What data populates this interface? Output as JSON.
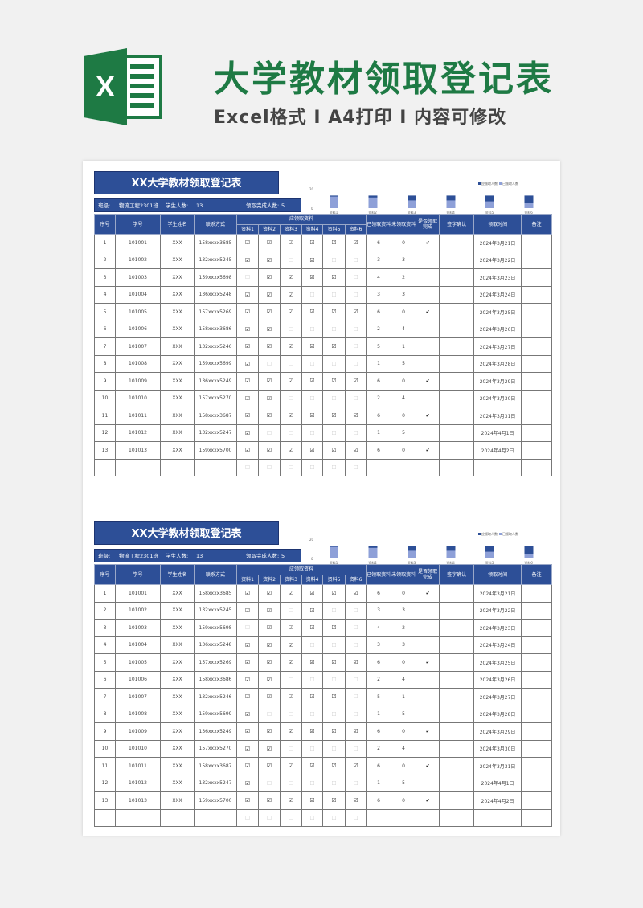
{
  "hero": {
    "title": "大学教材领取登记表",
    "subtitle": "Excel格式 I A4打印 I 内容可修改",
    "logo_letter": "X",
    "logo_color": "#1e7a44"
  },
  "sheet": {
    "title": "XX大学教材领取登记表",
    "info": {
      "class_label": "班级:",
      "class_value": "物流工程2301班",
      "students_label": "学生人数:",
      "students_value": "13",
      "done_label": "领取完成人数:",
      "done_value": "5"
    },
    "chart_data": {
      "type": "bar",
      "categories": [
        "资料1",
        "资料2",
        "资料3",
        "资料4",
        "资料5",
        "资料6"
      ],
      "series": [
        {
          "name": "应领取人数",
          "values": [
            13,
            13,
            13,
            13,
            13,
            13
          ],
          "color": "#2d4f97"
        },
        {
          "name": "已领取人数",
          "values": [
            12,
            11,
            8,
            8,
            7,
            5
          ],
          "color": "#8ea0d8"
        }
      ],
      "yticks": [
        "20",
        "0"
      ],
      "ylim": [
        0,
        20
      ],
      "legend": "top-right"
    },
    "headers": {
      "no": "序号",
      "id": "学号",
      "name": "学生姓名",
      "contact": "联系方式",
      "items_group": "应领取资料",
      "items": [
        "资料1",
        "资料2",
        "资料3",
        "资料4",
        "资料5",
        "资料6"
      ],
      "got": "已领取资料",
      "left": "未领取资料",
      "done": "是否领取完成",
      "sign": "签字确认",
      "time": "领取时间",
      "note": "备注"
    },
    "check_on": "☑",
    "check_off": "☐",
    "done_mark": "✔",
    "rows": [
      {
        "no": "1",
        "id": "101001",
        "name": "XXX",
        "contact": "158xxxx3685",
        "items": [
          1,
          1,
          1,
          1,
          1,
          1
        ],
        "got": "6",
        "left": "0",
        "done": true,
        "time": "2024年3月21日"
      },
      {
        "no": "2",
        "id": "101002",
        "name": "XXX",
        "contact": "132xxxx5245",
        "items": [
          1,
          1,
          0,
          1,
          0,
          0
        ],
        "got": "3",
        "left": "3",
        "done": false,
        "time": "2024年3月22日"
      },
      {
        "no": "3",
        "id": "101003",
        "name": "XXX",
        "contact": "159xxxx5698",
        "items": [
          0,
          1,
          1,
          1,
          1,
          0
        ],
        "got": "4",
        "left": "2",
        "done": false,
        "time": "2024年3月23日"
      },
      {
        "no": "4",
        "id": "101004",
        "name": "XXX",
        "contact": "136xxxx5248",
        "items": [
          1,
          1,
          1,
          0,
          0,
          0
        ],
        "got": "3",
        "left": "3",
        "done": false,
        "time": "2024年3月24日"
      },
      {
        "no": "5",
        "id": "101005",
        "name": "XXX",
        "contact": "157xxxx5269",
        "items": [
          1,
          1,
          1,
          1,
          1,
          1
        ],
        "got": "6",
        "left": "0",
        "done": true,
        "time": "2024年3月25日"
      },
      {
        "no": "6",
        "id": "101006",
        "name": "XXX",
        "contact": "158xxxx3686",
        "items": [
          1,
          1,
          0,
          0,
          0,
          0
        ],
        "got": "2",
        "left": "4",
        "done": false,
        "time": "2024年3月26日"
      },
      {
        "no": "7",
        "id": "101007",
        "name": "XXX",
        "contact": "132xxxx5246",
        "items": [
          1,
          1,
          1,
          1,
          1,
          0
        ],
        "got": "5",
        "left": "1",
        "done": false,
        "time": "2024年3月27日"
      },
      {
        "no": "8",
        "id": "101008",
        "name": "XXX",
        "contact": "159xxxx5699",
        "items": [
          1,
          0,
          0,
          0,
          0,
          0
        ],
        "got": "1",
        "left": "5",
        "done": false,
        "time": "2024年3月28日"
      },
      {
        "no": "9",
        "id": "101009",
        "name": "XXX",
        "contact": "136xxxx5249",
        "items": [
          1,
          1,
          1,
          1,
          1,
          1
        ],
        "got": "6",
        "left": "0",
        "done": true,
        "time": "2024年3月29日"
      },
      {
        "no": "10",
        "id": "101010",
        "name": "XXX",
        "contact": "157xxxx5270",
        "items": [
          1,
          1,
          0,
          0,
          0,
          0
        ],
        "got": "2",
        "left": "4",
        "done": false,
        "time": "2024年3月30日"
      },
      {
        "no": "11",
        "id": "101011",
        "name": "XXX",
        "contact": "158xxxx3687",
        "items": [
          1,
          1,
          1,
          1,
          1,
          1
        ],
        "got": "6",
        "left": "0",
        "done": true,
        "time": "2024年3月31日"
      },
      {
        "no": "12",
        "id": "101012",
        "name": "XXX",
        "contact": "132xxxx5247",
        "items": [
          1,
          0,
          0,
          0,
          0,
          0
        ],
        "got": "1",
        "left": "5",
        "done": false,
        "time": "2024年4月1日"
      },
      {
        "no": "13",
        "id": "101013",
        "name": "XXX",
        "contact": "159xxxx5700",
        "items": [
          1,
          1,
          1,
          1,
          1,
          1
        ],
        "got": "6",
        "left": "0",
        "done": true,
        "time": "2024年4月2日"
      },
      {
        "no": "",
        "id": "",
        "name": "",
        "contact": "",
        "items": [
          0,
          0,
          0,
          0,
          0,
          0
        ],
        "got": "",
        "left": "",
        "done": false,
        "time": ""
      }
    ]
  }
}
